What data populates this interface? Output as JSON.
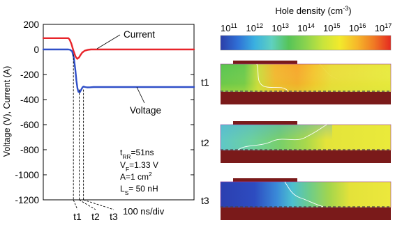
{
  "chart_data": [
    {
      "type": "line",
      "ylabel": "Voltage (V), Current (A)",
      "ylim": [
        -1200,
        200
      ],
      "yticks": [
        200,
        0,
        -200,
        -400,
        -600,
        -800,
        -1000,
        -1200
      ],
      "x_unit": "100 ns/div",
      "grid": false,
      "series": [
        {
          "name": "Current",
          "color": "#e8242a",
          "x": [
            0,
            100,
            105,
            112,
            120,
            128,
            135,
            142,
            148,
            155,
            165,
            178,
            190,
            600
          ],
          "y": [
            90,
            90,
            78,
            45,
            -10,
            -55,
            -75,
            -65,
            -45,
            -25,
            -10,
            -3,
            0,
            0
          ]
        },
        {
          "name": "Voltage",
          "color": "#2f4fc8",
          "x": [
            0,
            100,
            107,
            115,
            122,
            128,
            132,
            136,
            140,
            145,
            150,
            156,
            160,
            167,
            175,
            185,
            200,
            600
          ],
          "y": [
            0,
            0,
            -3,
            -15,
            -70,
            -170,
            -250,
            -310,
            -338,
            -342,
            -325,
            -302,
            -296,
            -300,
            -303,
            -302,
            -300,
            -300
          ]
        }
      ],
      "markers": [
        "t1",
        "t2",
        "t3"
      ],
      "annotation": {
        "trr": "t<sub>RR</sub>=51ns",
        "vf": "V<sub>F</sub>=1.33 V",
        "area": "A=1 cm<sup>2</sup>",
        "ls": "L<sub>S</sub>= 50 nH"
      }
    },
    {
      "type": "heatmap",
      "title": "Hole density (cm<sup>-3</sup>)",
      "colorbar_ticks": [
        "10<sup>11</sup>",
        "10<sup>12</sup>",
        "10<sup>13</sup>",
        "10<sup>14</sup>",
        "10<sup>15</sup>",
        "10<sup>16</sup>",
        "10<sup>17</sup>"
      ],
      "colorbar_colors": [
        "#2b3ea8",
        "#2f6fd6",
        "#3ab0e0",
        "#5fd0c0",
        "#56c458",
        "#8bd34e",
        "#c8e43c",
        "#f2ea2c",
        "#f6b92a",
        "#f07a24",
        "#e52a20"
      ],
      "panels": [
        "t1",
        "t2",
        "t3"
      ]
    }
  ]
}
